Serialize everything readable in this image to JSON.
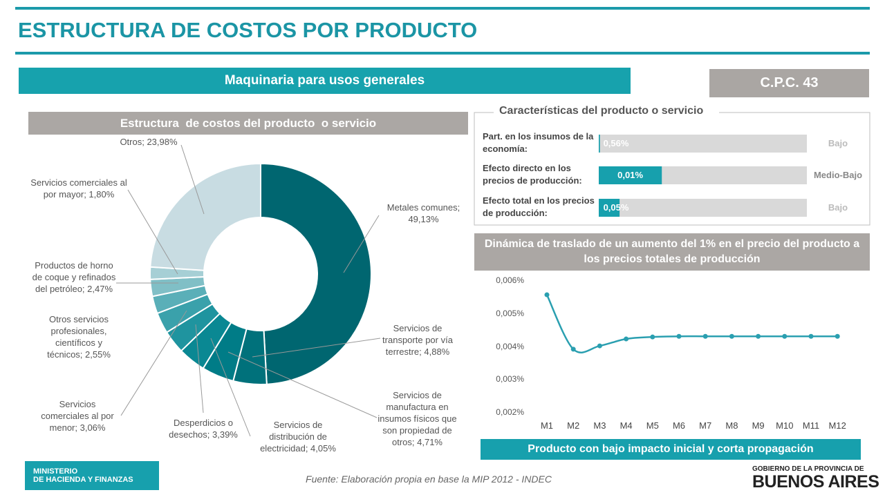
{
  "header": {
    "title": "ESTRUCTURA DE COSTOS POR PRODUCTO"
  },
  "product": "Maquinaria para usos generales",
  "code": "C.P.C. 43",
  "chart_data": [
    {
      "type": "donut",
      "title": "Estructura  de costos del producto  o servicio",
      "categories": [
        "Metales comunes; 49,13%",
        "Servicios de transporte por vía terrestre; 4,88%",
        "Servicios de manufactura en insumos físicos que son propiedad de otros; 4,71%",
        "Servicios de distribución de electricidad; 4,05%",
        "Desperdicios o desechos; 3,39%",
        "Servicios comerciales al por menor; 3,06%",
        "Otros servicios profesionales, científicos y técnicos; 2,55%",
        "Productos de horno de coque y refinados del petróleo; 2,47%",
        "Servicios comerciales al por mayor; 1,80%",
        "Otros; 23,98%"
      ],
      "values": [
        49.13,
        4.88,
        4.71,
        4.05,
        3.39,
        3.06,
        2.55,
        2.47,
        1.8,
        23.98
      ],
      "colors": [
        "#006670",
        "#00717b",
        "#007c87",
        "#0a8893",
        "#1f949f",
        "#3aa1ab",
        "#5aafb8",
        "#80bfc6",
        "#a6cfd5",
        "#c8dce2"
      ]
    },
    {
      "type": "hbar",
      "title": "Características del producto o servicio",
      "categories": [
        "Part. en los insumos de la economía:",
        "Efecto directo en los precios de producción:",
        "Efecto total en los precios de producción:"
      ],
      "values": [
        0.56,
        0.01,
        0.05
      ],
      "value_labels": [
        "0,56%",
        "0,01%",
        "0,05%"
      ],
      "levels": [
        "Bajo",
        "Medio-Bajo",
        "Bajo"
      ],
      "xlims": [
        [
          0,
          100
        ],
        [
          0,
          0.033
        ],
        [
          0,
          0.5
        ]
      ],
      "color": "#17a0ad",
      "track_color": "#d9d9d9"
    },
    {
      "type": "line",
      "title": "Dinámica de traslado de un aumento del 1% en el precio del producto a los precios totales de producción",
      "categories": [
        "M1",
        "M2",
        "M3",
        "M4",
        "M5",
        "M6",
        "M7",
        "M8",
        "M9",
        "M10",
        "M11",
        "M12"
      ],
      "values": [
        0.00558,
        0.00393,
        0.00403,
        0.00424,
        0.0043,
        0.00432,
        0.00432,
        0.00432,
        0.00432,
        0.00432,
        0.00432,
        0.00432
      ],
      "color": "#2a9fb0",
      "ylim": [
        0.002,
        0.006
      ],
      "yticks": [
        {
          "value": 0.002,
          "label": "0,002%"
        },
        {
          "value": 0.003,
          "label": "0,003%"
        },
        {
          "value": 0.004,
          "label": "0,004%"
        },
        {
          "value": 0.005,
          "label": "0,005%"
        },
        {
          "value": 0.006,
          "label": "0,006%"
        }
      ]
    }
  ],
  "conclusion": "Producto con bajo impacto inicial y corta propagación",
  "source": "Fuente: Elaboración propia en base la MIP 2012 - INDEC",
  "logos": {
    "ministry": [
      "MINISTERIO",
      "DE HACIENDA Y FINANZAS"
    ],
    "province": [
      "GOBIERNO DE LA PROVINCIA DE",
      "BUENOS AIRES"
    ]
  }
}
